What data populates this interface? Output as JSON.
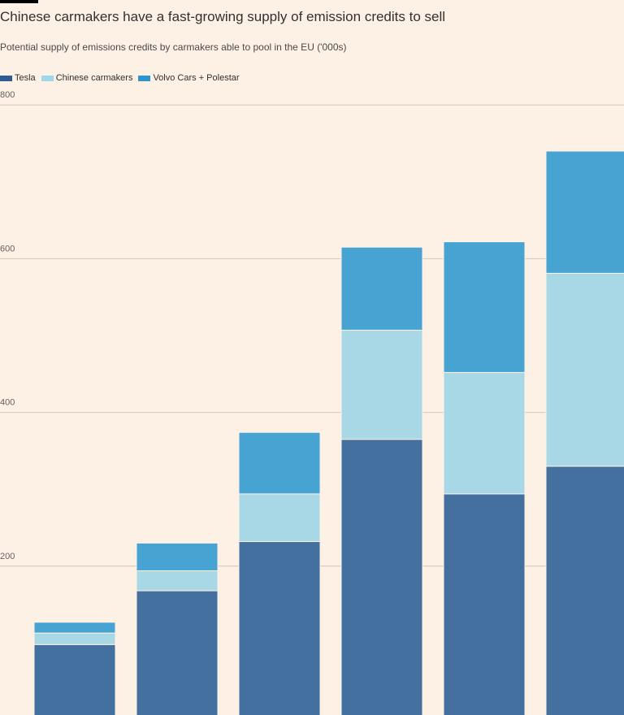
{
  "header": {
    "title": "Chinese carmakers have a fast-growing supply of emission credits to sell",
    "subtitle": "Potential supply of emissions credits by carmakers able to pool in the EU ('000s)"
  },
  "colors": {
    "tesla": "#44709f",
    "chinese": "#a8d8e6",
    "volvo": "#46a3d2",
    "background": "#fdf1e6",
    "gridline": "#cfc6bd"
  },
  "chart_data": {
    "type": "bar",
    "stacked": true,
    "title": "Chinese carmakers have a fast-growing supply of emission credits to sell",
    "subtitle": "Potential supply of emissions credits by carmakers able to pool in the EU ('000s)",
    "categories": [
      "",
      "",
      "",
      "",
      "",
      ""
    ],
    "series": [
      {
        "name": "Tesla",
        "key": "tesla",
        "values": [
          98,
          168,
          232,
          365,
          294,
          330
        ]
      },
      {
        "name": "Chinese carmakers",
        "key": "chinese",
        "values": [
          15,
          26,
          62,
          142,
          158,
          251
        ]
      },
      {
        "name": "Volvo Cars + Polestar",
        "key": "volvo",
        "values": [
          14,
          36,
          80,
          108,
          170,
          159
        ]
      }
    ],
    "yticks": [
      200,
      400,
      600,
      800
    ],
    "ytick_labels": [
      "200",
      "400",
      "600",
      "800"
    ],
    "ylim": [
      0,
      800
    ],
    "grid": true,
    "legend_position": "top-left"
  }
}
